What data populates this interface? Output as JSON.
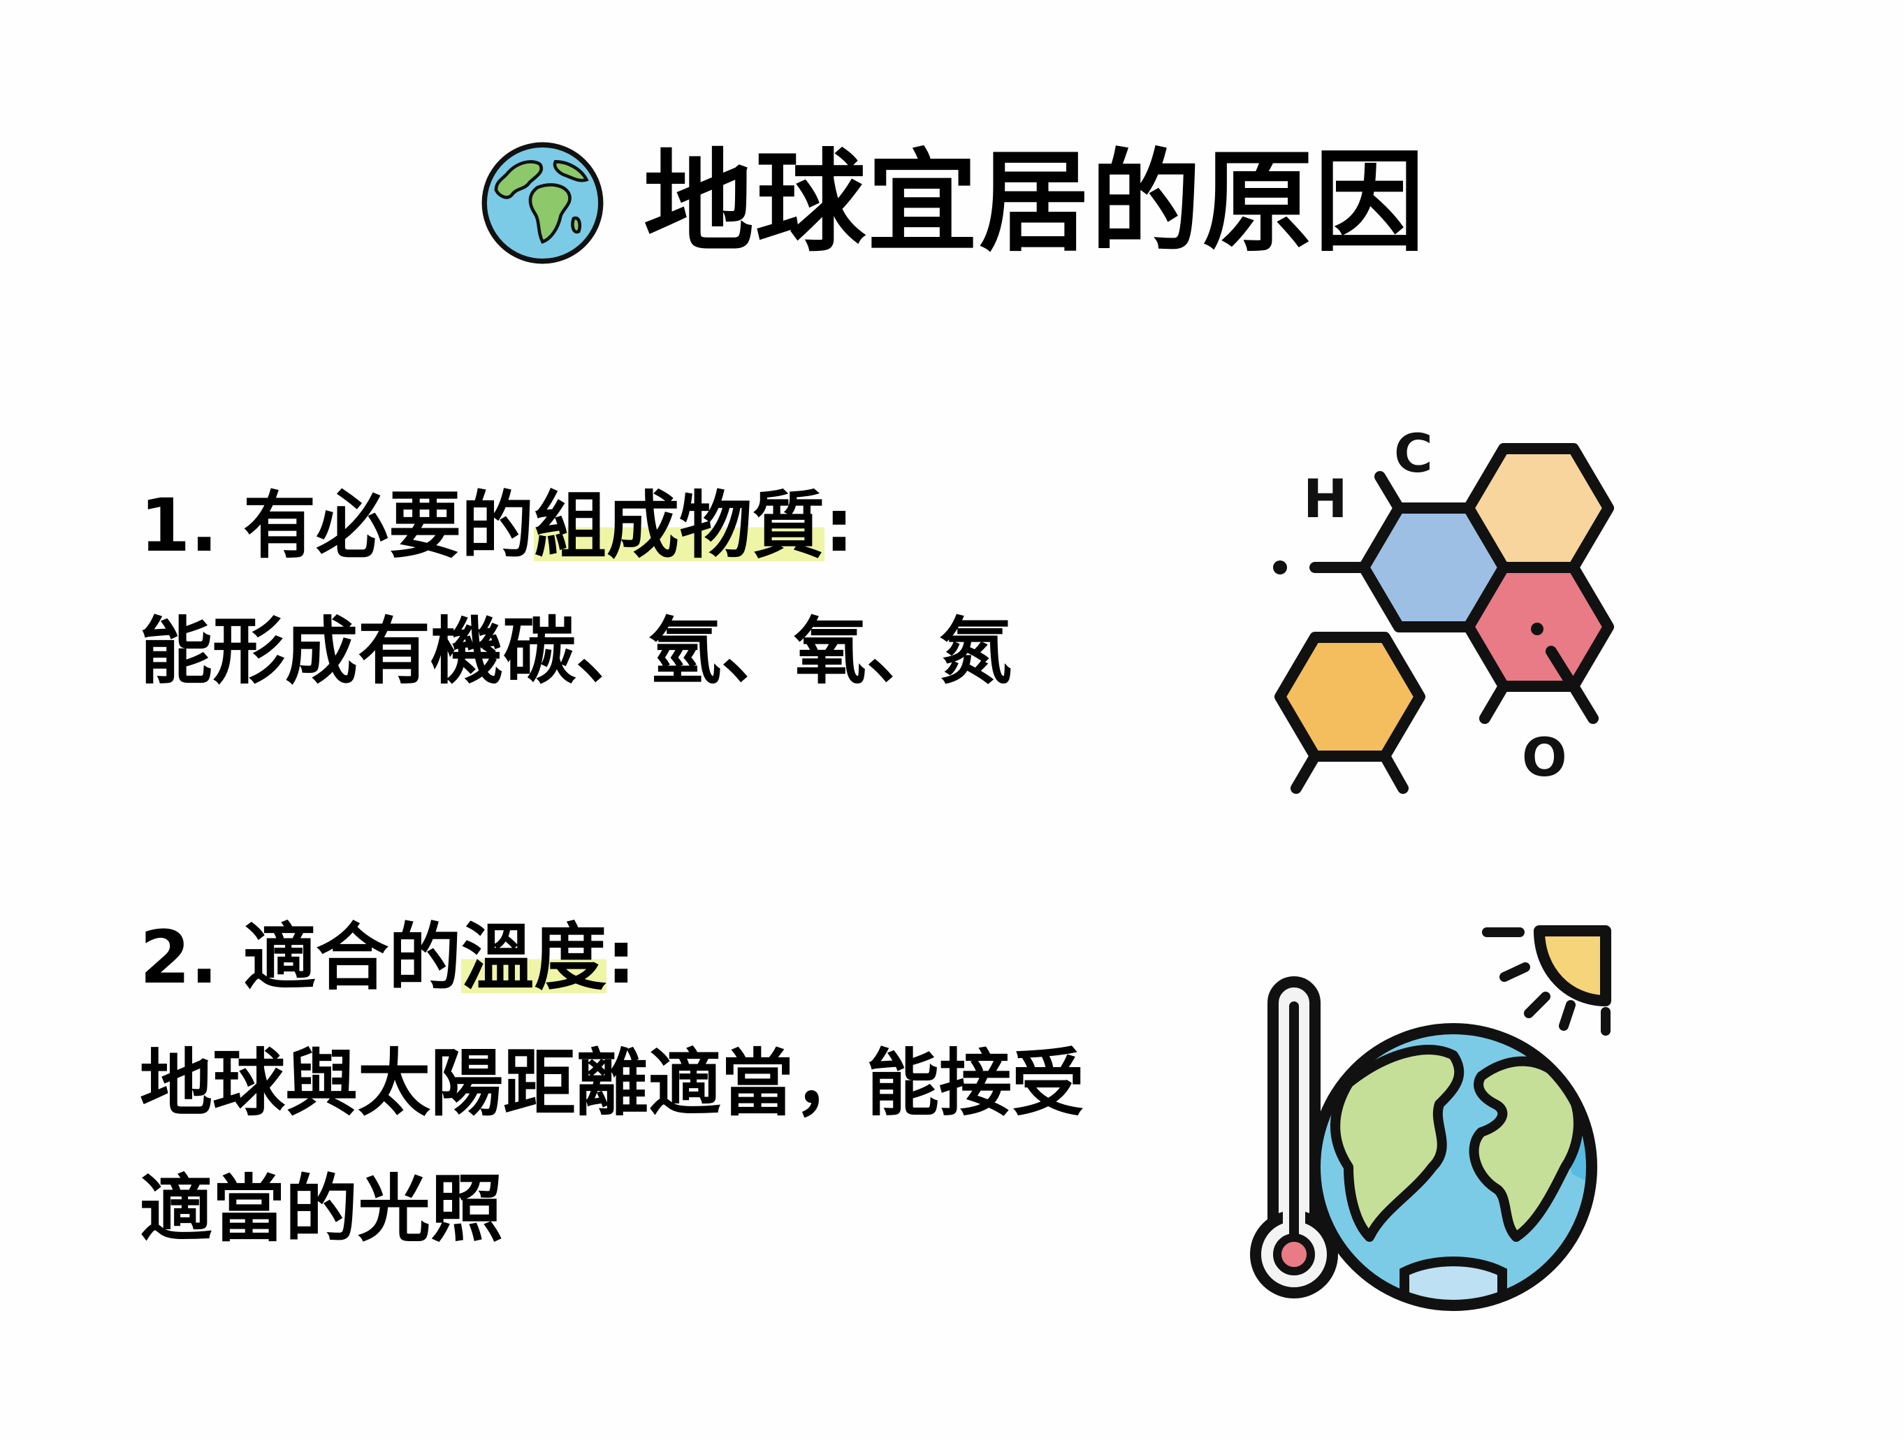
{
  "title": "地球宜居的原因",
  "icons": {
    "title_icon": "globe-africa-icon",
    "molecule_icon": "molecule-hexagons-icon",
    "climate_icon": "earth-thermometer-sun-icon"
  },
  "sections": [
    {
      "number": "1.",
      "heading_pre": "有必要的",
      "heading_highlight": "組成物質",
      "heading_post": ":",
      "body_lines": [
        "能形成有機碳、氫、氧、氮"
      ],
      "atom_labels": [
        "H",
        "C",
        "O"
      ]
    },
    {
      "number": "2.",
      "heading_pre": "適合的",
      "heading_highlight": "溫度",
      "heading_post": ":",
      "body_lines": [
        "地球與太陽距離適當，能接受",
        "適當的光照"
      ]
    }
  ],
  "colors": {
    "highlight": "#eef5a6",
    "hex_blue": "#9dbfe4",
    "hex_peach": "#f7d59d",
    "hex_red": "#e87b86",
    "hex_orange": "#f4bd5e",
    "ocean": "#7ccbe6",
    "land": "#c5df98",
    "sun": "#f6d47a",
    "thermo_bulb": "#e87b86"
  }
}
